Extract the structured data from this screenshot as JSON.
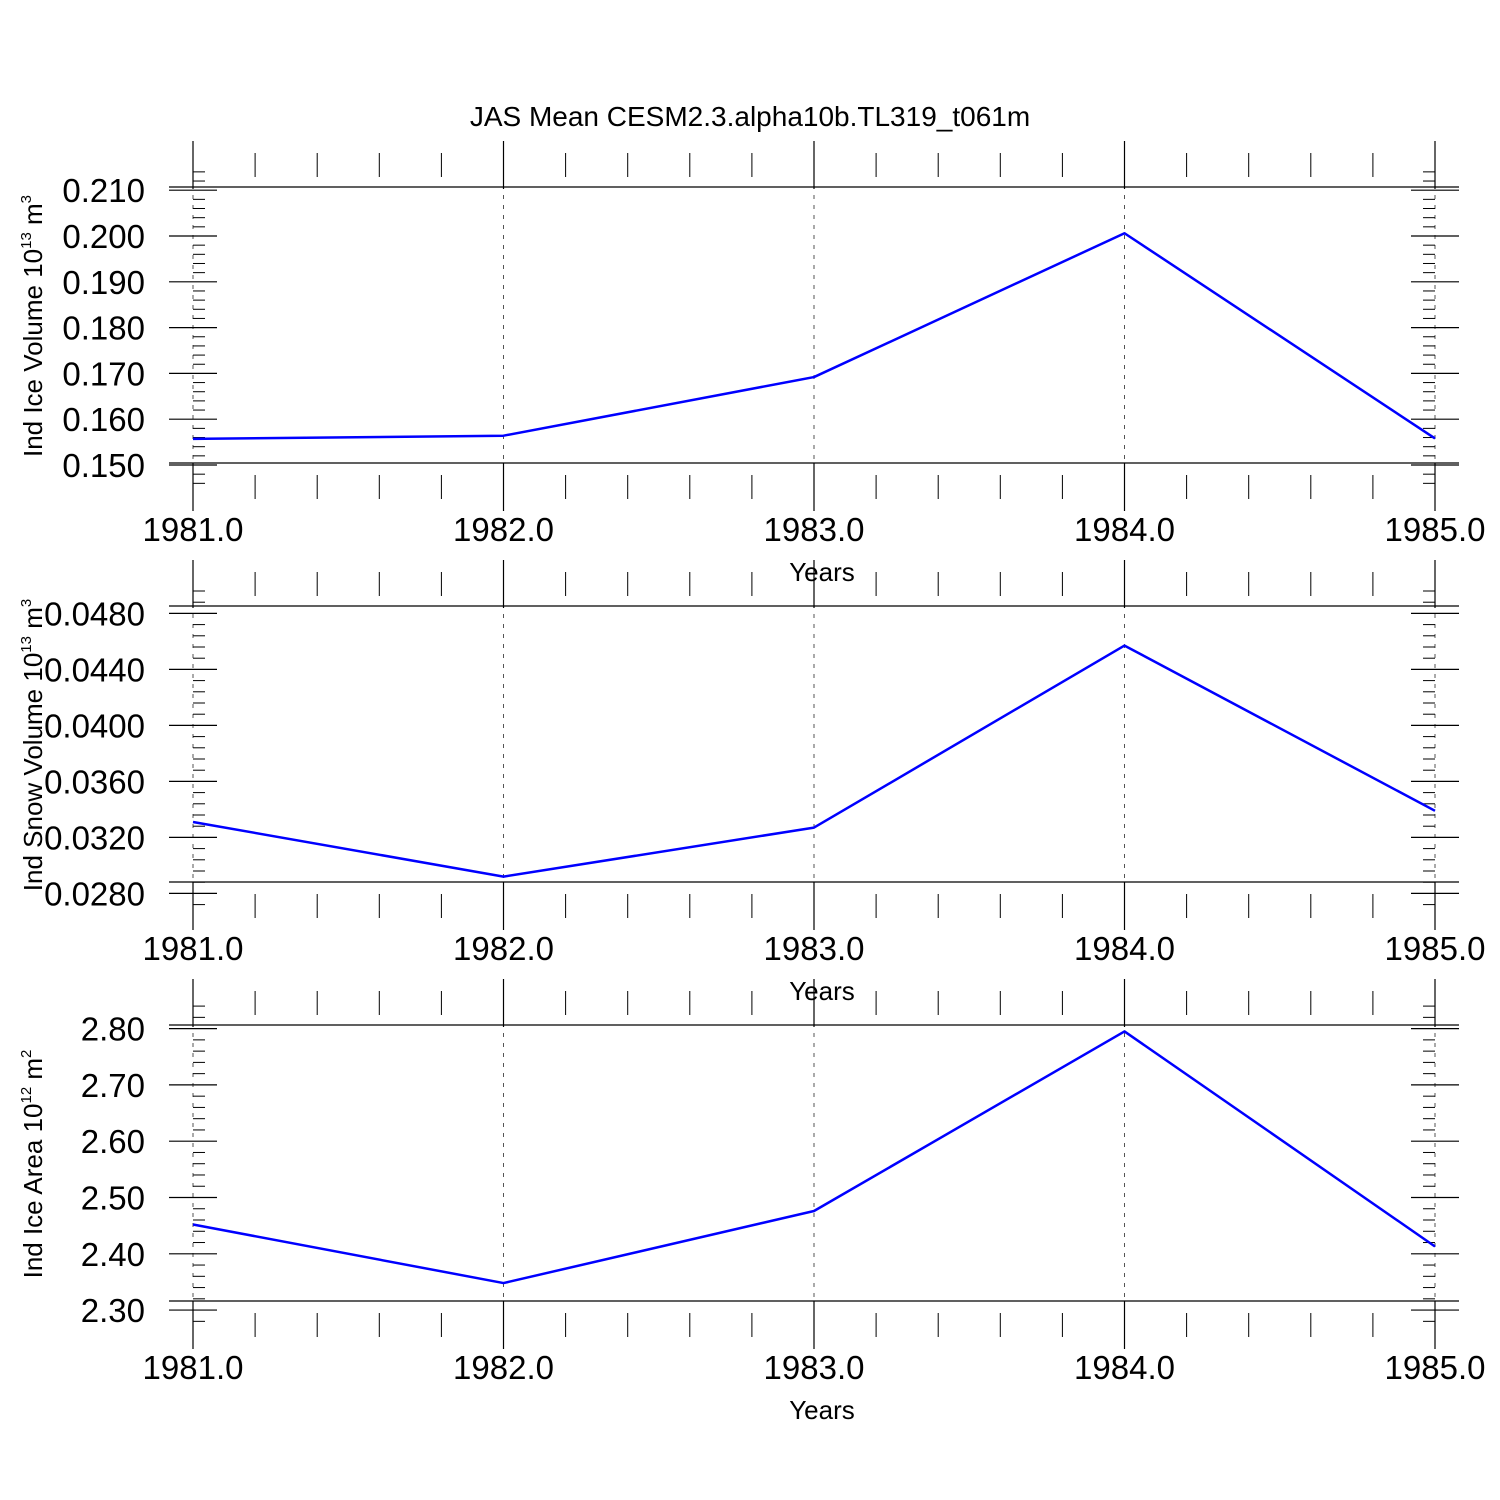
{
  "figure_title": "JAS Mean CESM2.3.alpha10b.TL319_t061m",
  "line_color": "#0000ff",
  "chart_data": [
    {
      "type": "line",
      "title": "JAS Mean CESM2.3.alpha10b.TL319_t061m",
      "xlabel": "Years",
      "ylabel": {
        "text": "Ind Ice Volume 10",
        "exp": "13",
        "unit": " m",
        "unit_exp": "3"
      },
      "x": [
        1981.0,
        1982.0,
        1983.0,
        1984.0,
        1985.0
      ],
      "y": [
        0.1557,
        0.1564,
        0.1692,
        0.2006,
        0.1558
      ],
      "xlim": [
        1981.0,
        1985.0
      ],
      "ylim": [
        0.1452,
        0.2155
      ],
      "xticks": [
        "1981.0",
        "1982.0",
        "1983.0",
        "1984.0",
        "1985.0"
      ],
      "yticks": [
        "0.150",
        "0.160",
        "0.170",
        "0.180",
        "0.190",
        "0.200",
        "0.210"
      ],
      "grid": "x dashed"
    },
    {
      "type": "line",
      "xlabel": "Years",
      "ylabel": {
        "text": "Ind Snow Volume 10",
        "exp": "13",
        "unit": " m",
        "unit_exp": "3"
      },
      "x": [
        1981.0,
        1982.0,
        1983.0,
        1984.0,
        1985.0
      ],
      "y": [
        0.0331,
        0.0292,
        0.0327,
        0.0457,
        0.0339
      ],
      "xlim": [
        1981.0,
        1985.0
      ],
      "ylim": [
        0.0271,
        0.0501
      ],
      "xticks": [
        "1981.0",
        "1982.0",
        "1983.0",
        "1984.0",
        "1985.0"
      ],
      "yticks": [
        "0.0280",
        "0.0320",
        "0.0360",
        "0.0400",
        "0.0440",
        "0.0480"
      ],
      "grid": "x dashed"
    },
    {
      "type": "line",
      "xlabel": "Years",
      "ylabel": {
        "text": "Ind Ice Area 10",
        "exp": "12",
        "unit": " m",
        "unit_exp": "2"
      },
      "x": [
        1981.0,
        1982.0,
        1983.0,
        1984.0,
        1985.0
      ],
      "y": [
        2.452,
        2.348,
        2.476,
        2.795,
        2.413
      ],
      "xlim": [
        1981.0,
        1985.0
      ],
      "ylim": [
        2.2735,
        2.8455
      ],
      "xticks": [
        "1981.0",
        "1982.0",
        "1983.0",
        "1984.0",
        "1985.0"
      ],
      "yticks": [
        "2.30",
        "2.40",
        "2.50",
        "2.60",
        "2.70",
        "2.80"
      ],
      "grid": "x dashed"
    }
  ]
}
